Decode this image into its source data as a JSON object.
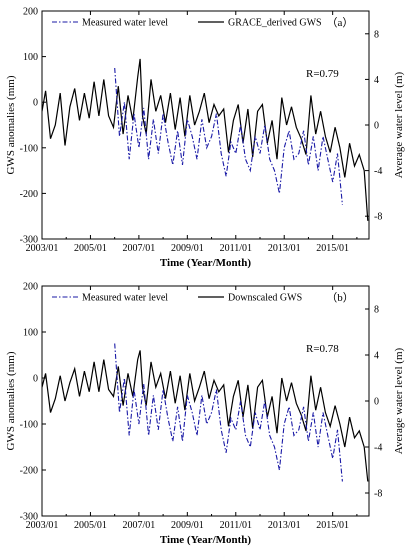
{
  "chart_data": [
    {
      "type": "line",
      "panel_label": "（a）",
      "correlation_label": "R=0.79",
      "xlabel": "Time (Year/Month)",
      "ylabel_left": "GWS anomalies (mm)",
      "ylabel_right": "Average water level (m)",
      "xlim": [
        2003.0,
        2016.5
      ],
      "ylim_left": [
        -300,
        200
      ],
      "ylim_right": [
        -10,
        10
      ],
      "x_ticks": [
        "2003/01",
        "2005/01",
        "2007/01",
        "2009/01",
        "2011/01",
        "2013/01",
        "2015/01"
      ],
      "y_ticks_left": [
        "200",
        "100",
        "0",
        "-100",
        "-200",
        "-300"
      ],
      "y_ticks_right": [
        "8",
        "4",
        "0",
        "-4",
        "-8"
      ],
      "legend": [
        "Measured water level",
        "GRACE_derived GWS"
      ],
      "series": [
        {
          "name": "GRACE_derived GWS",
          "axis": "left",
          "color": "#000000",
          "style": "solid",
          "x": [
            2003.0,
            2003.15,
            2003.35,
            2003.55,
            2003.75,
            2003.95,
            2004.15,
            2004.35,
            2004.55,
            2004.75,
            2004.95,
            2005.15,
            2005.35,
            2005.55,
            2005.75,
            2005.95,
            2006.15,
            2006.35,
            2006.55,
            2006.75,
            2006.95,
            2007.05,
            2007.15,
            2007.3,
            2007.5,
            2007.7,
            2007.9,
            2008.1,
            2008.3,
            2008.5,
            2008.7,
            2008.9,
            2009.1,
            2009.3,
            2009.5,
            2009.7,
            2009.9,
            2010.1,
            2010.3,
            2010.5,
            2010.7,
            2010.9,
            2011.1,
            2011.3,
            2011.5,
            2011.7,
            2011.9,
            2012.1,
            2012.3,
            2012.5,
            2012.7,
            2012.9,
            2013.1,
            2013.3,
            2013.5,
            2013.7,
            2013.9,
            2014.1,
            2014.3,
            2014.5,
            2014.7,
            2014.9,
            2015.1,
            2015.3,
            2015.5,
            2015.7,
            2015.9,
            2016.1,
            2016.3,
            2016.45
          ],
          "values": [
            -20,
            25,
            -80,
            -50,
            20,
            -95,
            -10,
            30,
            -40,
            20,
            -35,
            45,
            -30,
            50,
            -30,
            -55,
            35,
            -70,
            15,
            -40,
            55,
            95,
            -30,
            -70,
            50,
            -20,
            15,
            -45,
            20,
            -60,
            10,
            -75,
            15,
            -50,
            -20,
            20,
            -45,
            -5,
            -30,
            -15,
            -110,
            -40,
            -5,
            -90,
            -15,
            -120,
            -20,
            -5,
            -90,
            -40,
            -125,
            10,
            -50,
            -10,
            -55,
            -80,
            -115,
            15,
            -70,
            -20,
            -75,
            -110,
            -55,
            -100,
            -165,
            -90,
            -140,
            -115,
            -150,
            -260
          ]
        },
        {
          "name": "Measured water level",
          "axis": "right",
          "color": "#1a1aa6",
          "style": "dashdot",
          "x": [
            2006.0,
            2006.2,
            2006.4,
            2006.6,
            2006.8,
            2007.0,
            2007.2,
            2007.4,
            2007.6,
            2007.8,
            2008.0,
            2008.2,
            2008.4,
            2008.6,
            2008.8,
            2009.0,
            2009.2,
            2009.4,
            2009.6,
            2009.8,
            2010.0,
            2010.2,
            2010.4,
            2010.6,
            2010.8,
            2011.0,
            2011.2,
            2011.4,
            2011.6,
            2011.8,
            2012.0,
            2012.2,
            2012.4,
            2012.6,
            2012.8,
            2013.0,
            2013.2,
            2013.4,
            2013.6,
            2013.8,
            2014.0,
            2014.2,
            2014.4,
            2014.6,
            2014.8,
            2015.0,
            2015.2,
            2015.4
          ],
          "values": [
            5.0,
            -1.0,
            2.0,
            -3.0,
            1.0,
            -2.0,
            1.5,
            -3.0,
            0.5,
            -2.5,
            1.0,
            -1.5,
            -3.5,
            -0.5,
            -3.5,
            0.5,
            -1.0,
            -3.0,
            0.5,
            -2.0,
            -1.0,
            1.0,
            -2.5,
            -4.5,
            -1.5,
            -2.5,
            0.0,
            -3.0,
            -4.0,
            -1.0,
            -2.5,
            0.0,
            -3.0,
            -4.0,
            -6.0,
            -2.0,
            -0.5,
            -3.0,
            -2.5,
            -0.5,
            -3.5,
            -1.0,
            -4.0,
            -1.0,
            -3.0,
            -5.0,
            -2.5,
            -7.0
          ]
        }
      ]
    },
    {
      "type": "line",
      "panel_label": "（b）",
      "correlation_label": "R=0.78",
      "xlabel": "Time (Year/Month)",
      "ylabel_left": "GWS anomalies (mm)",
      "ylabel_right": "Average water level (m)",
      "xlim": [
        2003.0,
        2016.5
      ],
      "ylim_left": [
        -300,
        200
      ],
      "ylim_right": [
        -10,
        10
      ],
      "x_ticks": [
        "2003/01",
        "2005/01",
        "2007/01",
        "2009/01",
        "2011/01",
        "2013/01",
        "2015/01"
      ],
      "y_ticks_left": [
        "200",
        "100",
        "0",
        "-100",
        "-200",
        "-300"
      ],
      "y_ticks_right": [
        "8",
        "4",
        "0",
        "-4",
        "-8"
      ],
      "legend": [
        "Measured water level",
        "Downscaled GWS"
      ],
      "series": [
        {
          "name": "Downscaled GWS",
          "axis": "left",
          "color": "#000000",
          "style": "solid",
          "x": [
            2003.0,
            2003.15,
            2003.35,
            2003.55,
            2003.75,
            2003.95,
            2004.15,
            2004.35,
            2004.55,
            2004.75,
            2004.95,
            2005.15,
            2005.35,
            2005.55,
            2005.75,
            2005.95,
            2006.15,
            2006.35,
            2006.55,
            2006.75,
            2006.95,
            2007.05,
            2007.15,
            2007.3,
            2007.5,
            2007.7,
            2007.9,
            2008.1,
            2008.3,
            2008.5,
            2008.7,
            2008.9,
            2009.1,
            2009.3,
            2009.5,
            2009.7,
            2009.9,
            2010.1,
            2010.3,
            2010.5,
            2010.7,
            2010.9,
            2011.1,
            2011.3,
            2011.5,
            2011.7,
            2011.9,
            2012.1,
            2012.3,
            2012.5,
            2012.7,
            2012.9,
            2013.1,
            2013.3,
            2013.5,
            2013.7,
            2013.9,
            2014.1,
            2014.3,
            2014.5,
            2014.7,
            2014.9,
            2015.1,
            2015.3,
            2015.5,
            2015.7,
            2015.9,
            2016.1,
            2016.3,
            2016.45
          ],
          "values": [
            -20,
            10,
            -75,
            -45,
            5,
            -50,
            -10,
            20,
            -40,
            15,
            -30,
            35,
            -30,
            40,
            -25,
            -40,
            25,
            -60,
            10,
            -40,
            40,
            60,
            -20,
            -60,
            35,
            -20,
            10,
            -45,
            15,
            -55,
            5,
            -70,
            10,
            -50,
            -20,
            15,
            -45,
            -5,
            -30,
            -15,
            -105,
            -40,
            -5,
            -85,
            -15,
            -110,
            -20,
            -5,
            -85,
            -40,
            -120,
            0,
            -50,
            -10,
            -55,
            -80,
            -115,
            5,
            -70,
            -20,
            -75,
            -105,
            -60,
            -100,
            -150,
            -85,
            -130,
            -115,
            -150,
            -225
          ]
        },
        {
          "name": "Measured water level",
          "axis": "right",
          "color": "#1a1aa6",
          "style": "dashdot",
          "x": [
            2006.0,
            2006.2,
            2006.4,
            2006.6,
            2006.8,
            2007.0,
            2007.2,
            2007.4,
            2007.6,
            2007.8,
            2008.0,
            2008.2,
            2008.4,
            2008.6,
            2008.8,
            2009.0,
            2009.2,
            2009.4,
            2009.6,
            2009.8,
            2010.0,
            2010.2,
            2010.4,
            2010.6,
            2010.8,
            2011.0,
            2011.2,
            2011.4,
            2011.6,
            2011.8,
            2012.0,
            2012.2,
            2012.4,
            2012.6,
            2012.8,
            2013.0,
            2013.2,
            2013.4,
            2013.6,
            2013.8,
            2014.0,
            2014.2,
            2014.4,
            2014.6,
            2014.8,
            2015.0,
            2015.2,
            2015.4
          ],
          "values": [
            5.0,
            -1.0,
            2.0,
            -3.0,
            1.0,
            -2.0,
            1.5,
            -3.0,
            0.5,
            -2.5,
            1.0,
            -1.5,
            -3.5,
            -0.5,
            -3.5,
            0.5,
            -1.0,
            -3.0,
            0.5,
            -2.0,
            -1.0,
            1.0,
            -2.5,
            -4.5,
            -1.5,
            -2.5,
            0.0,
            -3.0,
            -4.0,
            -1.0,
            -2.5,
            0.0,
            -3.0,
            -4.0,
            -6.0,
            -2.0,
            -0.5,
            -3.0,
            -2.5,
            -0.5,
            -3.5,
            -1.0,
            -4.0,
            -1.0,
            -3.0,
            -5.0,
            -2.5,
            -7.0
          ]
        }
      ]
    }
  ]
}
